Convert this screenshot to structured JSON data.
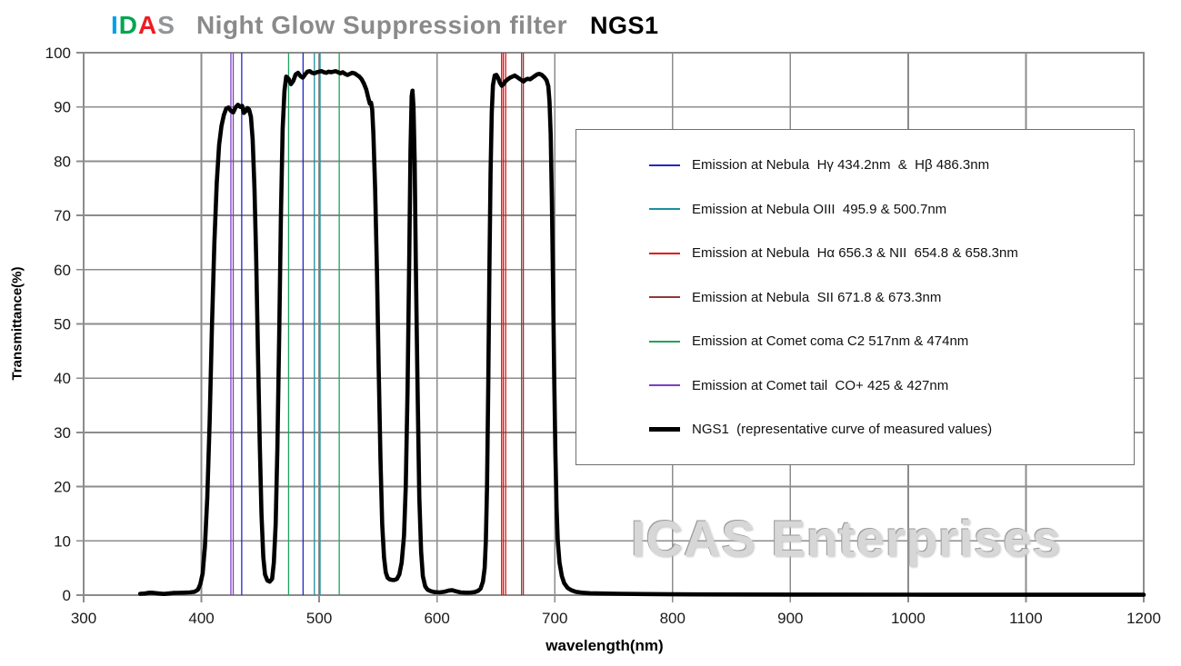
{
  "title": {
    "logo_letters": [
      {
        "text": "I",
        "color": "#00a0e9"
      },
      {
        "text": "D",
        "color": "#00a651"
      },
      {
        "text": "A",
        "color": "#ed1c24"
      },
      {
        "text": "S",
        "color": "#939598"
      }
    ],
    "subtitle": "Night Glow Suppression filter",
    "product": "NGS1"
  },
  "watermark": "ICAS Enterprises",
  "legend": {
    "items": [
      {
        "label": "Emission at Nebula  Hγ 434.2nm  &  Hβ 486.3nm",
        "color": "#2626c9",
        "thickness": 2
      },
      {
        "label": "Emission at Nebula OIII  495.9 & 500.7nm",
        "color": "#1b8f9e",
        "thickness": 2
      },
      {
        "label": "Emission at Nebula  Hα 656.3 & NII  654.8 & 658.3nm",
        "color": "#e01414",
        "thickness": 2
      },
      {
        "label": "Emission at Nebula  SII 671.8 & 673.3nm",
        "color": "#8e3a3a",
        "thickness": 2
      },
      {
        "label": "Emission at Comet coma C2 517nm & 474nm",
        "color": "#1ea35f",
        "thickness": 2
      },
      {
        "label": "Emission at Comet tail  CO+ 425 & 427nm",
        "color": "#7d3fc1",
        "thickness": 2
      },
      {
        "label": "NGS1  (representative curve of measured values)",
        "color": "#000000",
        "thickness": 5
      }
    ]
  },
  "chart_data": {
    "type": "line",
    "title": "IDAS Night Glow Suppression filter NGS1",
    "xlabel": "wavelength(nm)",
    "ylabel": "Transmittance(%)",
    "xlim": [
      300,
      1200
    ],
    "ylim": [
      0,
      100
    ],
    "x_ticks": [
      300,
      400,
      500,
      600,
      700,
      800,
      900,
      1000,
      1100,
      1200
    ],
    "y_ticks": [
      0,
      10,
      20,
      30,
      40,
      50,
      60,
      70,
      80,
      90,
      100
    ],
    "grid": true,
    "legend_position": "upper right",
    "grid_color": "#8c8c8c",
    "emission_lines": [
      {
        "name": "CO+ comet tail",
        "wavelength": 425.0,
        "color": "#7d3fc1"
      },
      {
        "name": "CO+ comet tail",
        "wavelength": 427.0,
        "color": "#7d3fc1"
      },
      {
        "name": "H-gamma nebula",
        "wavelength": 434.2,
        "color": "#2626c9"
      },
      {
        "name": "C2 comet coma",
        "wavelength": 474.0,
        "color": "#1ea35f"
      },
      {
        "name": "H-beta nebula",
        "wavelength": 486.3,
        "color": "#2626c9"
      },
      {
        "name": "OIII nebula",
        "wavelength": 495.9,
        "color": "#1b8f9e"
      },
      {
        "name": "OIII nebula",
        "wavelength": 500.7,
        "color": "#1b8f9e"
      },
      {
        "name": "C2 comet coma",
        "wavelength": 517.0,
        "color": "#1ea35f"
      },
      {
        "name": "NII nebula",
        "wavelength": 654.8,
        "color": "#e01414"
      },
      {
        "name": "H-alpha nebula",
        "wavelength": 656.3,
        "color": "#e01414"
      },
      {
        "name": "NII nebula",
        "wavelength": 658.3,
        "color": "#e01414"
      },
      {
        "name": "SII nebula",
        "wavelength": 671.8,
        "color": "#8e3a3a"
      },
      {
        "name": "SII nebula",
        "wavelength": 673.3,
        "color": "#8e3a3a"
      }
    ],
    "series": [
      {
        "name": "NGS1 (representative curve of measured values)",
        "color": "#000000",
        "width": 4.6,
        "points": [
          [
            348,
            0.25
          ],
          [
            352,
            0.3
          ],
          [
            356,
            0.45
          ],
          [
            360,
            0.4
          ],
          [
            364,
            0.3
          ],
          [
            368,
            0.22
          ],
          [
            372,
            0.3
          ],
          [
            376,
            0.4
          ],
          [
            380,
            0.42
          ],
          [
            385,
            0.45
          ],
          [
            390,
            0.5
          ],
          [
            394,
            0.6
          ],
          [
            397,
            1
          ],
          [
            399,
            2
          ],
          [
            401,
            4
          ],
          [
            403,
            9
          ],
          [
            405,
            18
          ],
          [
            407,
            32
          ],
          [
            409,
            50
          ],
          [
            411,
            65
          ],
          [
            413,
            76
          ],
          [
            415,
            83
          ],
          [
            417,
            86.5
          ],
          [
            419,
            88.5
          ],
          [
            421,
            89.7
          ],
          [
            423,
            89.9
          ],
          [
            425,
            89.3
          ],
          [
            427,
            89.0
          ],
          [
            429,
            89.9
          ],
          [
            431,
            90.4
          ],
          [
            433,
            90.0
          ],
          [
            434.5,
            90.2
          ],
          [
            436,
            88.9
          ],
          [
            437.5,
            89.2
          ],
          [
            439,
            89.8
          ],
          [
            440.5,
            89.5
          ],
          [
            442,
            88.2
          ],
          [
            443.5,
            84
          ],
          [
            445,
            75
          ],
          [
            446.5,
            62
          ],
          [
            448,
            45
          ],
          [
            449.5,
            28
          ],
          [
            451,
            15
          ],
          [
            452.5,
            7
          ],
          [
            454,
            3.8
          ],
          [
            456,
            2.7
          ],
          [
            458,
            2.5
          ],
          [
            460,
            3
          ],
          [
            461.5,
            6
          ],
          [
            463,
            13
          ],
          [
            464.5,
            27
          ],
          [
            466,
            48
          ],
          [
            467.5,
            70
          ],
          [
            469,
            86
          ],
          [
            470.5,
            93
          ],
          [
            472,
            95.6
          ],
          [
            474,
            95.2
          ],
          [
            476,
            94.2
          ],
          [
            478,
            94.8
          ],
          [
            480,
            96.0
          ],
          [
            482,
            96.3
          ],
          [
            484,
            95.7
          ],
          [
            486,
            95.4
          ],
          [
            488,
            96.0
          ],
          [
            490,
            96.5
          ],
          [
            492,
            96.6
          ],
          [
            494,
            96.3
          ],
          [
            496,
            96.2
          ],
          [
            498,
            96.4
          ],
          [
            500,
            96.5
          ],
          [
            502,
            96.6
          ],
          [
            504,
            96.4
          ],
          [
            506,
            96.3
          ],
          [
            508,
            96.5
          ],
          [
            510,
            96.4
          ],
          [
            512,
            96.5
          ],
          [
            514,
            96.6
          ],
          [
            516,
            96.4
          ],
          [
            518,
            96.2
          ],
          [
            520,
            96.4
          ],
          [
            522,
            96.1
          ],
          [
            524,
            95.9
          ],
          [
            526,
            96.1
          ],
          [
            528,
            96.3
          ],
          [
            530,
            96.2
          ],
          [
            532,
            95.9
          ],
          [
            534,
            95.6
          ],
          [
            536,
            95.1
          ],
          [
            538,
            94.3
          ],
          [
            540,
            93.2
          ],
          [
            541.5,
            91.8
          ],
          [
            543,
            90.6
          ],
          [
            544,
            90.8
          ],
          [
            545,
            89.5
          ],
          [
            546,
            85
          ],
          [
            547.5,
            75
          ],
          [
            549,
            60
          ],
          [
            550.5,
            42
          ],
          [
            552,
            25
          ],
          [
            553.5,
            13
          ],
          [
            555,
            7
          ],
          [
            556.5,
            4.2
          ],
          [
            558,
            3.2
          ],
          [
            560,
            2.9
          ],
          [
            562,
            2.8
          ],
          [
            564,
            2.8
          ],
          [
            566,
            3.0
          ],
          [
            568,
            3.8
          ],
          [
            570,
            6
          ],
          [
            572,
            11
          ],
          [
            573.5,
            20
          ],
          [
            575,
            38
          ],
          [
            576.5,
            63
          ],
          [
            577.5,
            82
          ],
          [
            578.5,
            92
          ],
          [
            579.2,
            93
          ],
          [
            580,
            90
          ],
          [
            581,
            80
          ],
          [
            582,
            62
          ],
          [
            583.5,
            38
          ],
          [
            585,
            18
          ],
          [
            586.5,
            8
          ],
          [
            588,
            3.5
          ],
          [
            590,
            1.6
          ],
          [
            592,
            1.0
          ],
          [
            595,
            0.7
          ],
          [
            598,
            0.55
          ],
          [
            602,
            0.5
          ],
          [
            606,
            0.6
          ],
          [
            610,
            0.85
          ],
          [
            613,
            0.9
          ],
          [
            616,
            0.7
          ],
          [
            620,
            0.5
          ],
          [
            624,
            0.45
          ],
          [
            628,
            0.45
          ],
          [
            632,
            0.55
          ],
          [
            635,
            0.8
          ],
          [
            637,
            1.2
          ],
          [
            639,
            2.5
          ],
          [
            640.5,
            5
          ],
          [
            641.5,
            10
          ],
          [
            642.5,
            20
          ],
          [
            643.5,
            38
          ],
          [
            644.5,
            60
          ],
          [
            645.5,
            78
          ],
          [
            646.5,
            89
          ],
          [
            647.5,
            94
          ],
          [
            649,
            95.8
          ],
          [
            650.5,
            95.9
          ],
          [
            652,
            95.3
          ],
          [
            653.5,
            94.4
          ],
          [
            655,
            93.9
          ],
          [
            656.5,
            94.2
          ],
          [
            658,
            94.7
          ],
          [
            660,
            95.1
          ],
          [
            662,
            95.4
          ],
          [
            664,
            95.6
          ],
          [
            666,
            95.8
          ],
          [
            668,
            95.5
          ],
          [
            670,
            95.2
          ],
          [
            672,
            94.9
          ],
          [
            673.5,
            94.7
          ],
          [
            675,
            95.0
          ],
          [
            677,
            95.2
          ],
          [
            679,
            95.1
          ],
          [
            681,
            95.4
          ],
          [
            683,
            95.7
          ],
          [
            685,
            96.0
          ],
          [
            687,
            96.1
          ],
          [
            689,
            95.9
          ],
          [
            691,
            95.5
          ],
          [
            693,
            94.9
          ],
          [
            694.5,
            93.8
          ],
          [
            695.5,
            91
          ],
          [
            696.5,
            85
          ],
          [
            697.5,
            73
          ],
          [
            698.5,
            57
          ],
          [
            699.5,
            40
          ],
          [
            700.5,
            26
          ],
          [
            701.5,
            16
          ],
          [
            702.5,
            10
          ],
          [
            704,
            6
          ],
          [
            706,
            3.5
          ],
          [
            708,
            2.2
          ],
          [
            711,
            1.3
          ],
          [
            714,
            0.9
          ],
          [
            718,
            0.6
          ],
          [
            723,
            0.45
          ],
          [
            730,
            0.35
          ],
          [
            740,
            0.3
          ],
          [
            755,
            0.25
          ],
          [
            775,
            0.2
          ],
          [
            800,
            0.15
          ],
          [
            850,
            0.12
          ],
          [
            900,
            0.1
          ],
          [
            1000,
            0.08
          ],
          [
            1100,
            0.07
          ],
          [
            1200,
            0.07
          ]
        ]
      }
    ]
  }
}
